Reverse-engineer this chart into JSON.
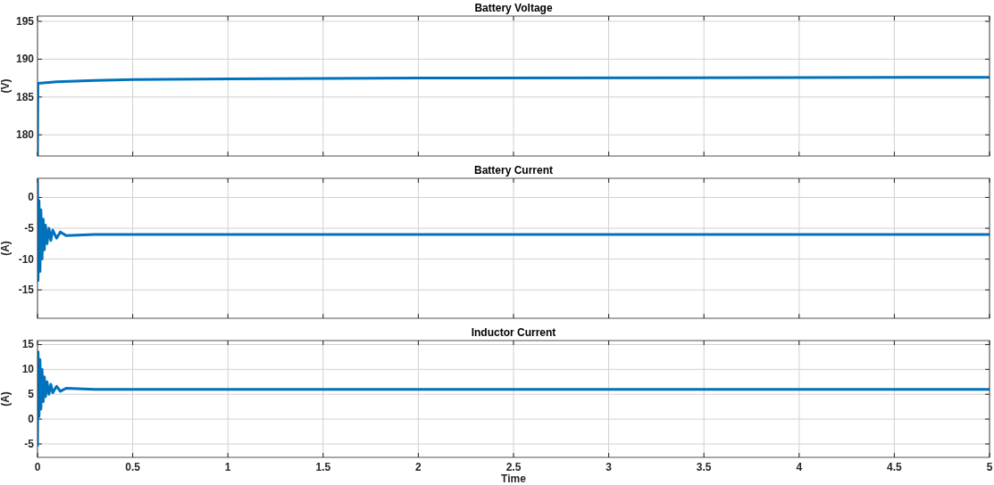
{
  "chart_data": [
    {
      "type": "line",
      "title": "Battery Voltage",
      "ylabel": "(V)",
      "xlim": [
        0,
        5
      ],
      "xticks": [
        0,
        0.5,
        1,
        1.5,
        2,
        2.5,
        3,
        3.5,
        4,
        4.5,
        5
      ],
      "ylim": [
        177.2,
        195.7
      ],
      "yticks": [
        180,
        185,
        190,
        195
      ],
      "grid": true,
      "tick_labels": "y",
      "series": [
        {
          "color": "#0072bd",
          "x": [
            0,
            0.002,
            0.1,
            0.3,
            0.5,
            1,
            2,
            5
          ],
          "values": [
            177.2,
            186.8,
            187.0,
            187.2,
            187.3,
            187.4,
            187.5,
            187.6
          ]
        }
      ]
    },
    {
      "type": "line",
      "title": "Battery Current",
      "ylabel": "(A)",
      "xlim": [
        0,
        5
      ],
      "xticks": [
        0,
        0.5,
        1,
        1.5,
        2,
        2.5,
        3,
        3.5,
        4,
        4.5,
        5
      ],
      "ylim": [
        -19.6,
        3.1
      ],
      "yticks": [
        -15,
        -10,
        -5,
        0
      ],
      "grid": true,
      "tick_labels": "y",
      "series": [
        {
          "color": "#0072bd",
          "x": [
            0,
            0.003,
            0.008,
            0.013,
            0.018,
            0.024,
            0.03,
            0.036,
            0.042,
            0.05,
            0.06,
            0.07,
            0.08,
            0.1,
            0.12,
            0.15,
            0.3,
            5
          ],
          "values": [
            3,
            -13.5,
            -0.5,
            -12,
            -2,
            -10,
            -3.5,
            -8.5,
            -4.5,
            -7.5,
            -5,
            -7,
            -5.3,
            -6.6,
            -5.6,
            -6.2,
            -6,
            -6
          ]
        }
      ]
    },
    {
      "type": "line",
      "title": "Inductor Current",
      "ylabel": "(A)",
      "xlabel": "Time",
      "xlim": [
        0,
        5
      ],
      "xticks": [
        0,
        0.5,
        1,
        1.5,
        2,
        2.5,
        3,
        3.5,
        4,
        4.5,
        5
      ],
      "ylim": [
        -7.7,
        15.8
      ],
      "yticks": [
        -5,
        0,
        5,
        10,
        15
      ],
      "grid": true,
      "series": [
        {
          "color": "#0072bd",
          "x": [
            0,
            0.003,
            0.008,
            0.013,
            0.018,
            0.024,
            0.03,
            0.036,
            0.042,
            0.05,
            0.06,
            0.07,
            0.08,
            0.1,
            0.12,
            0.15,
            0.3,
            5
          ],
          "values": [
            -5.5,
            13.5,
            0.5,
            12,
            2,
            10,
            3.5,
            8.5,
            4.5,
            7.5,
            5,
            7,
            5.3,
            6.6,
            5.6,
            6.2,
            6,
            6
          ]
        }
      ]
    }
  ]
}
